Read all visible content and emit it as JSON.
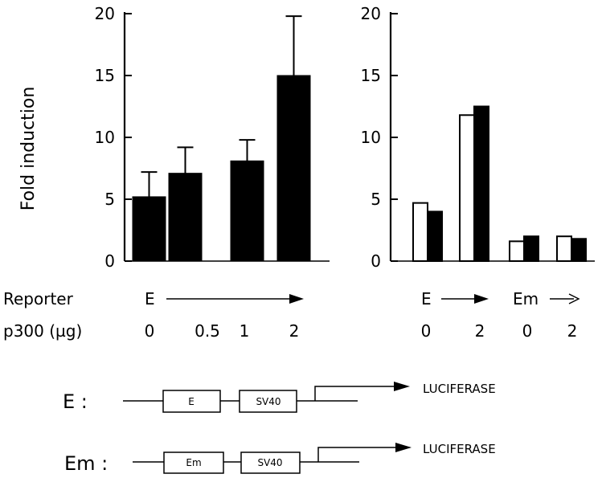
{
  "chart_data": [
    {
      "type": "bar",
      "panel": "left",
      "ylabel": "Fold induction",
      "ylim": [
        0,
        20
      ],
      "yticks": [
        "0",
        "5",
        "10",
        "15",
        "20"
      ],
      "categories": [
        "0",
        "0.5",
        "1",
        "2"
      ],
      "series": [
        {
          "values": [
            5.2,
            7.1,
            8.1,
            15.0
          ],
          "errors": [
            2.0,
            2.1,
            1.7,
            4.8
          ],
          "fill": "#000000"
        }
      ]
    },
    {
      "type": "bar",
      "panel": "right",
      "ylim": [
        0,
        20
      ],
      "yticks": [
        "0",
        "5",
        "10",
        "15",
        "20"
      ],
      "categories": [
        "0",
        "2",
        "0",
        "2"
      ],
      "series": [
        {
          "values": [
            4.7,
            11.8,
            1.6,
            2.0
          ],
          "fill": "#ffffff"
        },
        {
          "values": [
            4.0,
            12.5,
            2.0,
            1.8
          ],
          "fill": "#000000"
        }
      ]
    }
  ],
  "labels": {
    "reporter": "Reporter",
    "p300": "p300 (µg)",
    "reporter_left": "E",
    "reporter_right_e": "E",
    "reporter_right_em": "Em"
  },
  "constructs": [
    {
      "name": "E :",
      "element": "E",
      "promoter": "SV40",
      "gene": "LUCIFERASE"
    },
    {
      "name": "Em :",
      "element": "Em",
      "promoter": "SV40",
      "gene": "LUCIFERASE"
    }
  ]
}
